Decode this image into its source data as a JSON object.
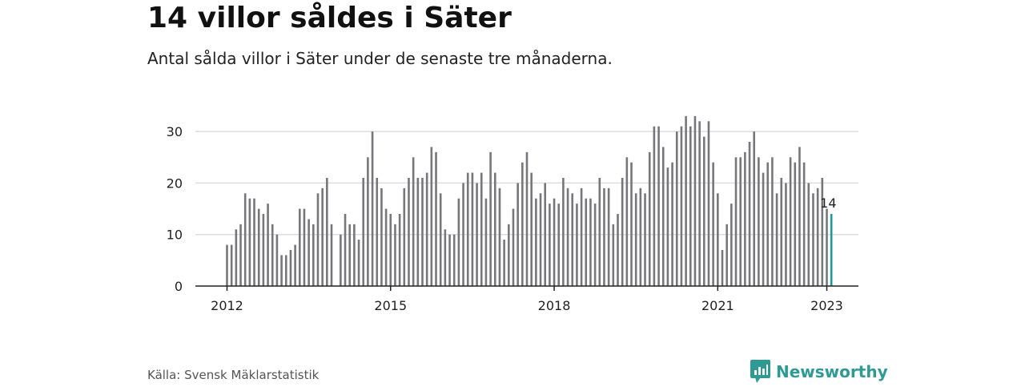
{
  "title": "14 villor såldes i Säter",
  "subtitle": "Antal sålda villor i Säter under de senaste tre månaderna.",
  "source": "Källa: Svensk Mäklarstatistik",
  "brand": {
    "name": "Newsworthy",
    "icon": "newsworthy-logo-icon",
    "color": "#2f9a93"
  },
  "colors": {
    "bar": "#77777b",
    "highlight": "#1f9a93",
    "grid": "#dddddd",
    "axis": "#222222"
  },
  "chart_data": {
    "type": "bar",
    "title": "14 villor såldes i Säter",
    "subtitle": "Antal sålda villor i Säter under de senaste tre månaderna.",
    "xlabel": "",
    "ylabel": "",
    "ylim": [
      0,
      33
    ],
    "yticks": [
      0,
      10,
      20,
      30
    ],
    "xticks": [
      "2012",
      "2015",
      "2018",
      "2021",
      "2023"
    ],
    "grid": true,
    "start": "2012-01",
    "end": "2023-01",
    "highlight_label": "14",
    "values": [
      8,
      8,
      11,
      12,
      18,
      17,
      17,
      15,
      14,
      16,
      12,
      10,
      6,
      6,
      7,
      8,
      15,
      15,
      13,
      12,
      18,
      19,
      21,
      12,
      null,
      10,
      14,
      12,
      12,
      9,
      21,
      25,
      30,
      21,
      19,
      15,
      14,
      12,
      14,
      19,
      21,
      25,
      21,
      21,
      22,
      27,
      26,
      18,
      11,
      10,
      10,
      17,
      20,
      22,
      22,
      20,
      22,
      17,
      26,
      22,
      19,
      9,
      12,
      15,
      20,
      24,
      26,
      22,
      17,
      18,
      20,
      16,
      17,
      16,
      21,
      19,
      18,
      16,
      19,
      17,
      17,
      16,
      21,
      19,
      19,
      12,
      14,
      21,
      25,
      24,
      18,
      19,
      18,
      26,
      31,
      31,
      27,
      23,
      24,
      30,
      31,
      33,
      31,
      33,
      32,
      29,
      32,
      24,
      18,
      7,
      12,
      16,
      25,
      25,
      26,
      28,
      30,
      25,
      22,
      24,
      25,
      18,
      21,
      20,
      25,
      24,
      27,
      24,
      20,
      18,
      19,
      21,
      15,
      14
    ]
  }
}
